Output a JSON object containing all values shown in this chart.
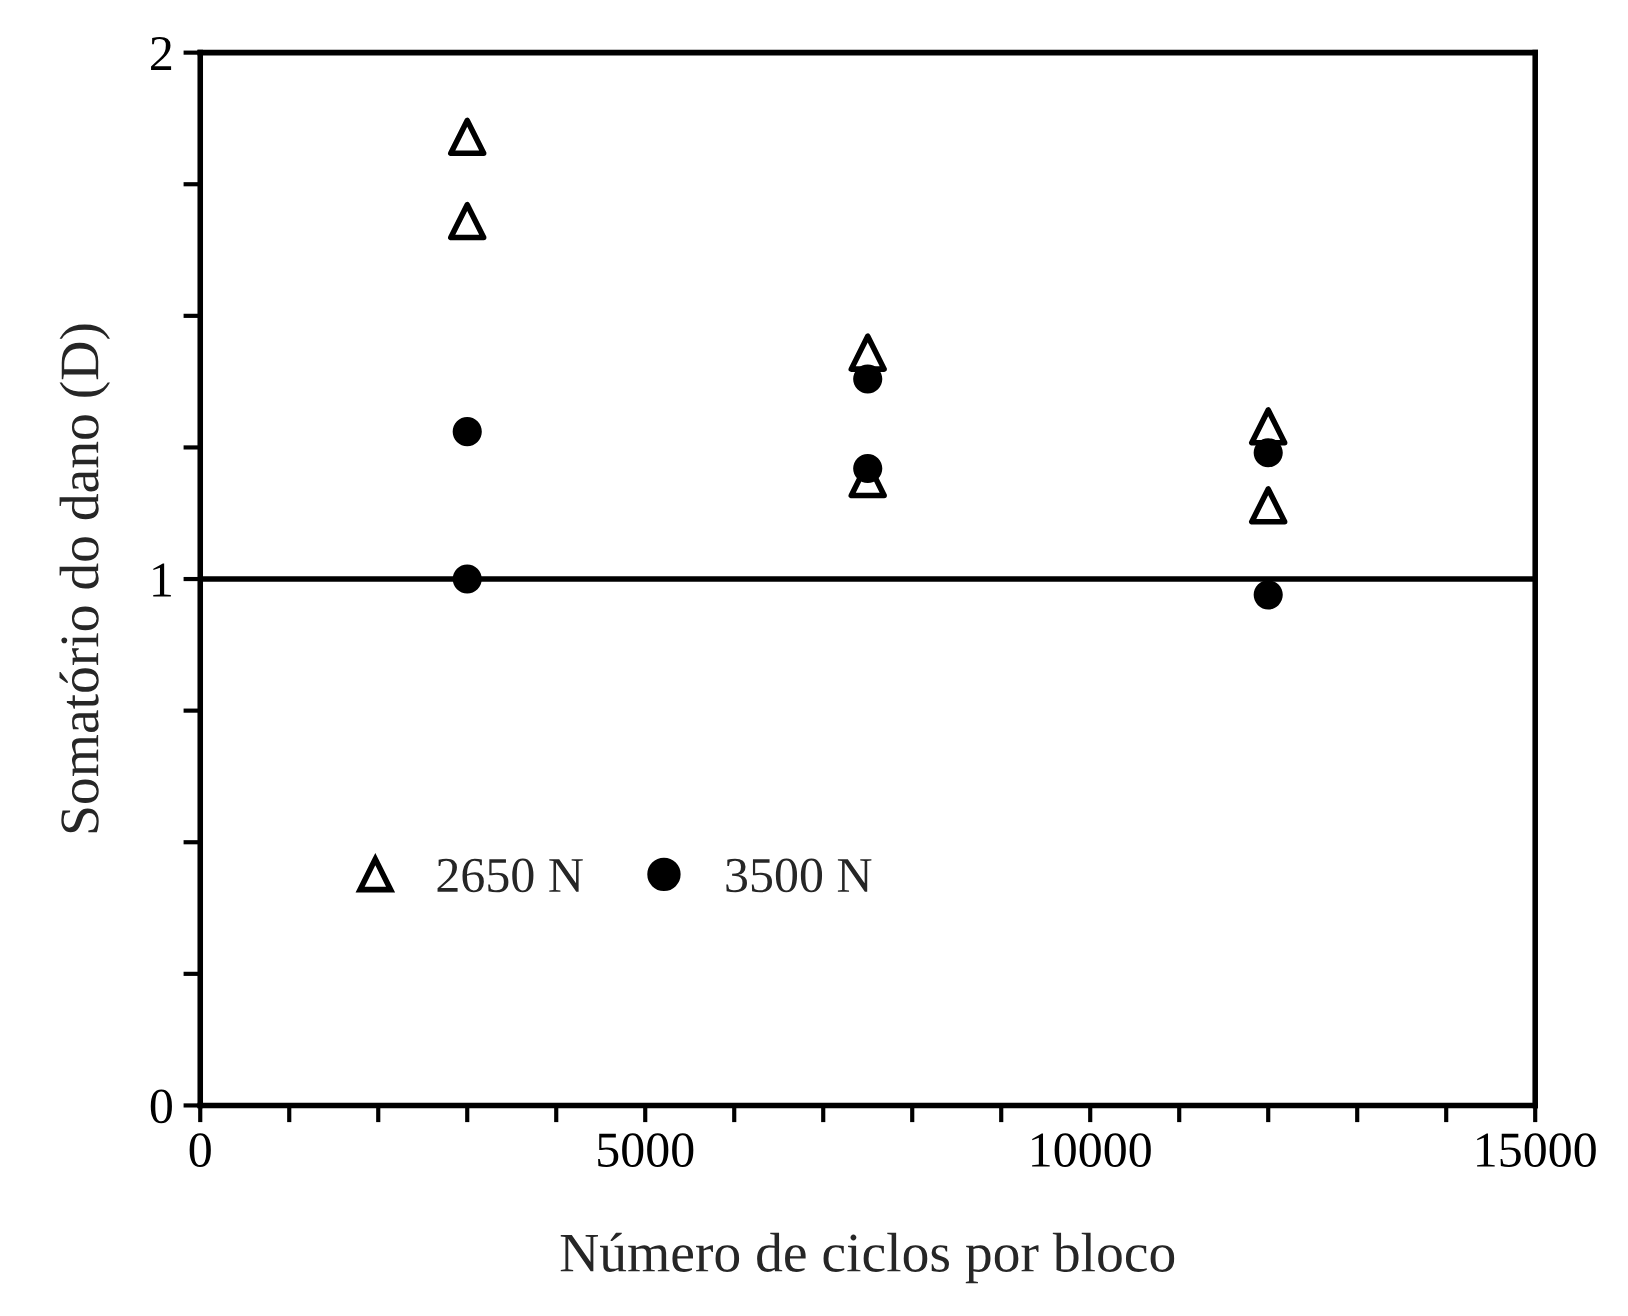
{
  "chart_data": {
    "type": "scatter",
    "xlabel": "Número de ciclos por bloco",
    "ylabel": "Somatório do dano (D)",
    "xlim": [
      0,
      15000
    ],
    "ylim": [
      0,
      2
    ],
    "xticks": [
      0,
      {
        "value": 1000,
        "label": null
      },
      {
        "value": 2000,
        "label": null
      },
      {
        "value": 3000,
        "label": null
      },
      {
        "value": 4000,
        "label": null
      },
      5000,
      {
        "value": 6000,
        "label": null
      },
      {
        "value": 7000,
        "label": null
      },
      {
        "value": 8000,
        "label": null
      },
      {
        "value": 9000,
        "label": null
      },
      10000,
      {
        "value": 11000,
        "label": null
      },
      {
        "value": 12000,
        "label": null
      },
      {
        "value": 13000,
        "label": null
      },
      {
        "value": 14000,
        "label": null
      },
      15000
    ],
    "yticks": [
      0,
      {
        "value": 0.25,
        "label": null
      },
      {
        "value": 0.5,
        "label": null
      },
      {
        "value": 0.75,
        "label": null
      },
      1,
      {
        "value": 1.25,
        "label": null
      },
      {
        "value": 1.5,
        "label": null
      },
      {
        "value": 1.75,
        "label": null
      },
      2
    ],
    "series": [
      {
        "name": "2650 N",
        "color": "#000000",
        "marker": "triangle",
        "x": [
          3000,
          3000,
          7500,
          7500,
          12000,
          12000
        ],
        "values": [
          1.84,
          1.68,
          1.43,
          1.19,
          1.29,
          1.14
        ]
      },
      {
        "name": "3500 N",
        "color": "#000000",
        "marker": "circle",
        "x": [
          3000,
          3000,
          7500,
          7500,
          12000,
          12000
        ],
        "values": [
          1.28,
          1.0,
          1.38,
          1.21,
          1.24,
          0.97
        ]
      }
    ],
    "ref_lines": [
      {
        "axis": "y",
        "value": 1,
        "color": "#000000",
        "line_style": "solid"
      }
    ],
    "legend": "bottom left",
    "grid": false
  }
}
